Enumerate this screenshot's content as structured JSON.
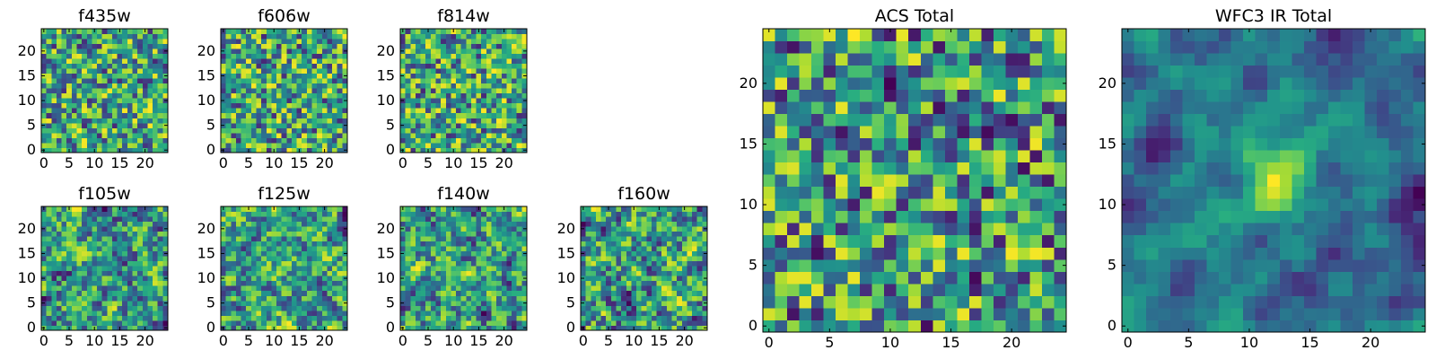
{
  "chart_data": [
    {
      "type": "heatmap",
      "title": "f435w",
      "xlim": [
        -0.5,
        24.5
      ],
      "ylim": [
        -0.5,
        24.5
      ],
      "x_ticks": [
        "0",
        "5",
        "10",
        "15",
        "20"
      ],
      "y_ticks": [
        "0",
        "5",
        "10",
        "15",
        "20"
      ],
      "colormap": "viridis",
      "grid": false,
      "smoothing": 0.0,
      "seed": 11
    },
    {
      "type": "heatmap",
      "title": "f606w",
      "xlim": [
        -0.5,
        24.5
      ],
      "ylim": [
        -0.5,
        24.5
      ],
      "x_ticks": [
        "0",
        "5",
        "10",
        "15",
        "20"
      ],
      "y_ticks": [
        "0",
        "5",
        "10",
        "15",
        "20"
      ],
      "colormap": "viridis",
      "grid": false,
      "smoothing": 0.0,
      "seed": 23
    },
    {
      "type": "heatmap",
      "title": "f814w",
      "xlim": [
        -0.5,
        24.5
      ],
      "ylim": [
        -0.5,
        24.5
      ],
      "x_ticks": [
        "0",
        "5",
        "10",
        "15",
        "20"
      ],
      "y_ticks": [
        "0",
        "5",
        "10",
        "15",
        "20"
      ],
      "colormap": "viridis",
      "grid": false,
      "smoothing": 0.0,
      "seed": 37
    },
    {
      "type": "heatmap",
      "title": "f105w",
      "xlim": [
        -0.5,
        24.5
      ],
      "ylim": [
        -0.5,
        24.5
      ],
      "x_ticks": [
        "0",
        "5",
        "10",
        "15",
        "20"
      ],
      "y_ticks": [
        "0",
        "5",
        "10",
        "15",
        "20"
      ],
      "colormap": "viridis",
      "grid": false,
      "smoothing": 0.5,
      "seed": 41
    },
    {
      "type": "heatmap",
      "title": "f125w",
      "xlim": [
        -0.5,
        24.5
      ],
      "ylim": [
        -0.5,
        24.5
      ],
      "x_ticks": [
        "0",
        "5",
        "10",
        "15",
        "20"
      ],
      "y_ticks": [
        "0",
        "5",
        "10",
        "15",
        "20"
      ],
      "colormap": "viridis",
      "grid": false,
      "smoothing": 0.55,
      "seed": 53
    },
    {
      "type": "heatmap",
      "title": "f140w",
      "xlim": [
        -0.5,
        24.5
      ],
      "ylim": [
        -0.5,
        24.5
      ],
      "x_ticks": [
        "0",
        "5",
        "10",
        "15",
        "20"
      ],
      "y_ticks": [
        "0",
        "5",
        "10",
        "15",
        "20"
      ],
      "colormap": "viridis",
      "grid": false,
      "smoothing": 0.55,
      "seed": 67
    },
    {
      "type": "heatmap",
      "title": "f160w",
      "xlim": [
        -0.5,
        24.5
      ],
      "ylim": [
        -0.5,
        24.5
      ],
      "x_ticks": [
        "0",
        "5",
        "10",
        "15",
        "20"
      ],
      "y_ticks": [
        "0",
        "5",
        "10",
        "15",
        "20"
      ],
      "colormap": "viridis",
      "grid": false,
      "smoothing": 0.5,
      "seed": 79
    },
    {
      "type": "heatmap",
      "title": "ACS Total",
      "xlim": [
        -0.5,
        24.5
      ],
      "ylim": [
        -0.5,
        24.5
      ],
      "x_ticks": [
        "0",
        "5",
        "10",
        "15",
        "20"
      ],
      "y_ticks": [
        "0",
        "5",
        "10",
        "15",
        "20"
      ],
      "colormap": "viridis",
      "grid": false,
      "smoothing": 0.15,
      "seed": 97
    },
    {
      "type": "heatmap",
      "title": "WFC3 IR Total",
      "xlim": [
        -0.5,
        24.5
      ],
      "ylim": [
        -0.5,
        24.5
      ],
      "x_ticks": [
        "0",
        "5",
        "10",
        "15",
        "20"
      ],
      "y_ticks": [
        "0",
        "5",
        "10",
        "15",
        "20"
      ],
      "colormap": "viridis",
      "grid": false,
      "smoothing": 0.7,
      "seed": 113,
      "source_peak": {
        "x": 12,
        "y": 12,
        "amplitude": 0.6
      }
    }
  ]
}
